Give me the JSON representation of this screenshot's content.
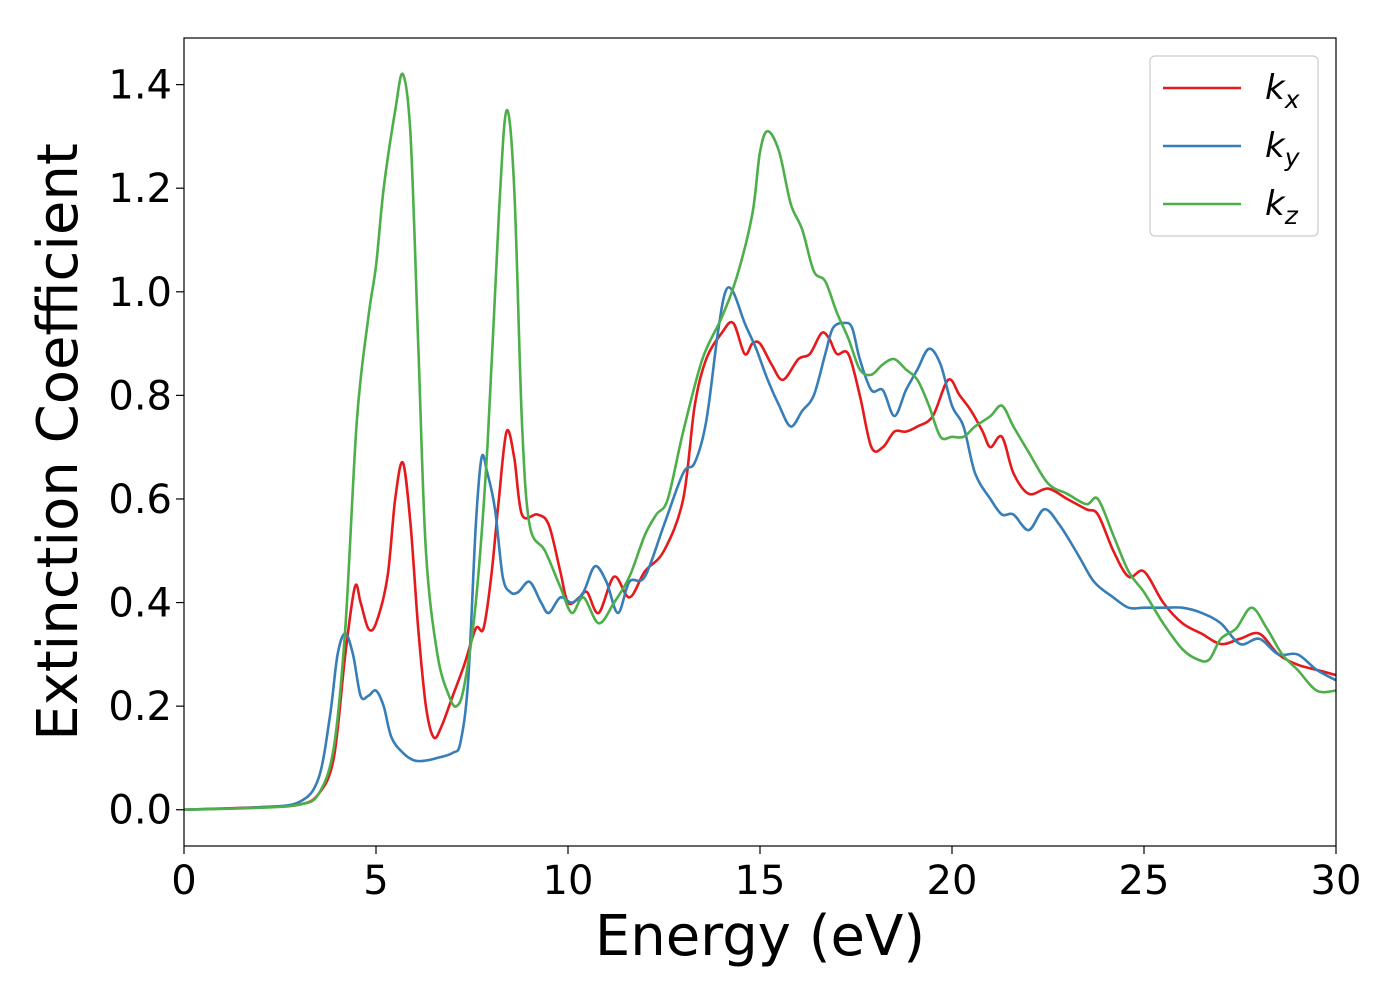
{
  "chart_data": {
    "type": "line",
    "xlabel": "Energy (eV)",
    "ylabel": "Extinction Coefficient",
    "xlim": [
      0,
      30
    ],
    "ylim": [
      -0.07,
      1.49
    ],
    "xticks": [
      "0",
      "5",
      "10",
      "15",
      "20",
      "25",
      "30"
    ],
    "yticks": [
      "0.0",
      "0.2",
      "0.4",
      "0.6",
      "0.8",
      "1.0",
      "1.2",
      "1.4"
    ],
    "grid": false,
    "legend_position": "top-right",
    "series": [
      {
        "name": "k",
        "subscript": "x",
        "color": "#e41a1c",
        "points": [
          [
            0,
            0
          ],
          [
            2,
            0.005
          ],
          [
            3,
            0.01
          ],
          [
            3.5,
            0.03
          ],
          [
            3.9,
            0.1
          ],
          [
            4.2,
            0.3
          ],
          [
            4.45,
            0.43
          ],
          [
            4.6,
            0.4
          ],
          [
            4.8,
            0.35
          ],
          [
            5.0,
            0.36
          ],
          [
            5.3,
            0.45
          ],
          [
            5.5,
            0.6
          ],
          [
            5.7,
            0.67
          ],
          [
            5.9,
            0.55
          ],
          [
            6.1,
            0.35
          ],
          [
            6.3,
            0.2
          ],
          [
            6.5,
            0.14
          ],
          [
            6.7,
            0.16
          ],
          [
            7.0,
            0.22
          ],
          [
            7.3,
            0.28
          ],
          [
            7.6,
            0.35
          ],
          [
            7.8,
            0.35
          ],
          [
            8.0,
            0.45
          ],
          [
            8.2,
            0.6
          ],
          [
            8.4,
            0.73
          ],
          [
            8.6,
            0.68
          ],
          [
            8.8,
            0.57
          ],
          [
            9.2,
            0.57
          ],
          [
            9.5,
            0.55
          ],
          [
            9.8,
            0.46
          ],
          [
            10.0,
            0.4
          ],
          [
            10.3,
            0.41
          ],
          [
            10.5,
            0.42
          ],
          [
            10.8,
            0.38
          ],
          [
            11.2,
            0.45
          ],
          [
            11.6,
            0.41
          ],
          [
            12.0,
            0.46
          ],
          [
            12.5,
            0.5
          ],
          [
            13.0,
            0.6
          ],
          [
            13.3,
            0.78
          ],
          [
            13.6,
            0.87
          ],
          [
            14.0,
            0.92
          ],
          [
            14.3,
            0.94
          ],
          [
            14.6,
            0.88
          ],
          [
            14.8,
            0.9
          ],
          [
            15.0,
            0.9
          ],
          [
            15.3,
            0.86
          ],
          [
            15.6,
            0.83
          ],
          [
            16.0,
            0.87
          ],
          [
            16.3,
            0.88
          ],
          [
            16.6,
            0.92
          ],
          [
            16.8,
            0.91
          ],
          [
            17.0,
            0.88
          ],
          [
            17.3,
            0.88
          ],
          [
            17.6,
            0.8
          ],
          [
            17.9,
            0.7
          ],
          [
            18.2,
            0.7
          ],
          [
            18.5,
            0.73
          ],
          [
            18.8,
            0.73
          ],
          [
            19.1,
            0.74
          ],
          [
            19.5,
            0.76
          ],
          [
            19.9,
            0.83
          ],
          [
            20.2,
            0.8
          ],
          [
            20.5,
            0.77
          ],
          [
            20.8,
            0.73
          ],
          [
            21.0,
            0.7
          ],
          [
            21.3,
            0.72
          ],
          [
            21.6,
            0.65
          ],
          [
            22.0,
            0.61
          ],
          [
            22.5,
            0.62
          ],
          [
            23.0,
            0.6
          ],
          [
            23.5,
            0.58
          ],
          [
            23.8,
            0.57
          ],
          [
            24.2,
            0.5
          ],
          [
            24.6,
            0.45
          ],
          [
            25.0,
            0.46
          ],
          [
            25.5,
            0.4
          ],
          [
            26.0,
            0.36
          ],
          [
            26.5,
            0.34
          ],
          [
            27.0,
            0.32
          ],
          [
            27.5,
            0.33
          ],
          [
            28.0,
            0.34
          ],
          [
            28.5,
            0.3
          ],
          [
            29.0,
            0.28
          ],
          [
            29.5,
            0.27
          ],
          [
            30.0,
            0.26
          ]
        ]
      },
      {
        "name": "k",
        "subscript": "y",
        "color": "#377eb8",
        "points": [
          [
            0,
            0
          ],
          [
            2,
            0.005
          ],
          [
            3,
            0.015
          ],
          [
            3.5,
            0.06
          ],
          [
            3.8,
            0.18
          ],
          [
            4.0,
            0.3
          ],
          [
            4.2,
            0.34
          ],
          [
            4.4,
            0.3
          ],
          [
            4.6,
            0.22
          ],
          [
            4.8,
            0.22
          ],
          [
            5.0,
            0.23
          ],
          [
            5.2,
            0.2
          ],
          [
            5.4,
            0.14
          ],
          [
            5.7,
            0.11
          ],
          [
            6.0,
            0.095
          ],
          [
            6.3,
            0.095
          ],
          [
            6.6,
            0.1
          ],
          [
            7.0,
            0.11
          ],
          [
            7.2,
            0.13
          ],
          [
            7.4,
            0.25
          ],
          [
            7.6,
            0.55
          ],
          [
            7.75,
            0.68
          ],
          [
            7.9,
            0.65
          ],
          [
            8.1,
            0.58
          ],
          [
            8.3,
            0.45
          ],
          [
            8.5,
            0.42
          ],
          [
            8.7,
            0.42
          ],
          [
            9.0,
            0.44
          ],
          [
            9.3,
            0.4
          ],
          [
            9.5,
            0.38
          ],
          [
            9.8,
            0.41
          ],
          [
            10.1,
            0.4
          ],
          [
            10.4,
            0.42
          ],
          [
            10.7,
            0.47
          ],
          [
            11.0,
            0.44
          ],
          [
            11.3,
            0.38
          ],
          [
            11.6,
            0.44
          ],
          [
            12.0,
            0.45
          ],
          [
            12.5,
            0.55
          ],
          [
            13.0,
            0.65
          ],
          [
            13.3,
            0.67
          ],
          [
            13.6,
            0.75
          ],
          [
            13.9,
            0.92
          ],
          [
            14.1,
            1.0
          ],
          [
            14.3,
            1.0
          ],
          [
            14.6,
            0.94
          ],
          [
            14.9,
            0.89
          ],
          [
            15.2,
            0.83
          ],
          [
            15.5,
            0.78
          ],
          [
            15.8,
            0.74
          ],
          [
            16.1,
            0.77
          ],
          [
            16.4,
            0.8
          ],
          [
            16.7,
            0.88
          ],
          [
            16.9,
            0.93
          ],
          [
            17.2,
            0.94
          ],
          [
            17.4,
            0.93
          ],
          [
            17.6,
            0.87
          ],
          [
            17.9,
            0.81
          ],
          [
            18.2,
            0.81
          ],
          [
            18.5,
            0.76
          ],
          [
            18.8,
            0.81
          ],
          [
            19.1,
            0.85
          ],
          [
            19.4,
            0.89
          ],
          [
            19.7,
            0.86
          ],
          [
            20.0,
            0.78
          ],
          [
            20.3,
            0.74
          ],
          [
            20.6,
            0.65
          ],
          [
            21.0,
            0.6
          ],
          [
            21.3,
            0.57
          ],
          [
            21.6,
            0.57
          ],
          [
            22.0,
            0.54
          ],
          [
            22.4,
            0.58
          ],
          [
            22.8,
            0.55
          ],
          [
            23.3,
            0.49
          ],
          [
            23.7,
            0.44
          ],
          [
            24.2,
            0.41
          ],
          [
            24.6,
            0.39
          ],
          [
            25.0,
            0.39
          ],
          [
            25.5,
            0.39
          ],
          [
            26.0,
            0.39
          ],
          [
            26.5,
            0.38
          ],
          [
            27.0,
            0.36
          ],
          [
            27.5,
            0.32
          ],
          [
            28.0,
            0.33
          ],
          [
            28.5,
            0.3
          ],
          [
            29.0,
            0.3
          ],
          [
            29.5,
            0.27
          ],
          [
            30.0,
            0.25
          ]
        ]
      },
      {
        "name": "k",
        "subscript": "z",
        "color": "#4daf4a",
        "points": [
          [
            0,
            0
          ],
          [
            2,
            0.004
          ],
          [
            3,
            0.01
          ],
          [
            3.5,
            0.03
          ],
          [
            3.9,
            0.12
          ],
          [
            4.2,
            0.35
          ],
          [
            4.5,
            0.75
          ],
          [
            4.8,
            0.95
          ],
          [
            5.0,
            1.05
          ],
          [
            5.2,
            1.2
          ],
          [
            5.5,
            1.35
          ],
          [
            5.7,
            1.42
          ],
          [
            5.9,
            1.3
          ],
          [
            6.1,
            0.9
          ],
          [
            6.3,
            0.5
          ],
          [
            6.6,
            0.3
          ],
          [
            6.9,
            0.22
          ],
          [
            7.1,
            0.2
          ],
          [
            7.3,
            0.24
          ],
          [
            7.6,
            0.4
          ],
          [
            7.9,
            0.7
          ],
          [
            8.2,
            1.15
          ],
          [
            8.4,
            1.35
          ],
          [
            8.6,
            1.2
          ],
          [
            8.8,
            0.75
          ],
          [
            9.0,
            0.55
          ],
          [
            9.4,
            0.5
          ],
          [
            9.8,
            0.43
          ],
          [
            10.1,
            0.38
          ],
          [
            10.4,
            0.41
          ],
          [
            10.8,
            0.36
          ],
          [
            11.2,
            0.4
          ],
          [
            11.6,
            0.45
          ],
          [
            12.0,
            0.53
          ],
          [
            12.3,
            0.57
          ],
          [
            12.6,
            0.6
          ],
          [
            13.0,
            0.73
          ],
          [
            13.5,
            0.87
          ],
          [
            14.0,
            0.95
          ],
          [
            14.4,
            1.03
          ],
          [
            14.8,
            1.15
          ],
          [
            15.0,
            1.27
          ],
          [
            15.2,
            1.31
          ],
          [
            15.5,
            1.27
          ],
          [
            15.8,
            1.17
          ],
          [
            16.1,
            1.12
          ],
          [
            16.4,
            1.04
          ],
          [
            16.7,
            1.02
          ],
          [
            17.0,
            0.96
          ],
          [
            17.3,
            0.91
          ],
          [
            17.6,
            0.85
          ],
          [
            17.9,
            0.84
          ],
          [
            18.2,
            0.86
          ],
          [
            18.5,
            0.87
          ],
          [
            18.8,
            0.85
          ],
          [
            19.1,
            0.83
          ],
          [
            19.4,
            0.78
          ],
          [
            19.7,
            0.72
          ],
          [
            20.0,
            0.72
          ],
          [
            20.3,
            0.72
          ],
          [
            20.6,
            0.74
          ],
          [
            21.0,
            0.76
          ],
          [
            21.3,
            0.78
          ],
          [
            21.6,
            0.74
          ],
          [
            22.0,
            0.69
          ],
          [
            22.5,
            0.63
          ],
          [
            23.0,
            0.61
          ],
          [
            23.5,
            0.59
          ],
          [
            23.8,
            0.6
          ],
          [
            24.2,
            0.53
          ],
          [
            24.6,
            0.46
          ],
          [
            25.0,
            0.42
          ],
          [
            25.5,
            0.36
          ],
          [
            26.0,
            0.31
          ],
          [
            26.4,
            0.29
          ],
          [
            26.7,
            0.29
          ],
          [
            27.0,
            0.33
          ],
          [
            27.4,
            0.35
          ],
          [
            27.8,
            0.39
          ],
          [
            28.2,
            0.35
          ],
          [
            28.6,
            0.3
          ],
          [
            29.0,
            0.27
          ],
          [
            29.5,
            0.23
          ],
          [
            30.0,
            0.23
          ]
        ]
      }
    ]
  }
}
